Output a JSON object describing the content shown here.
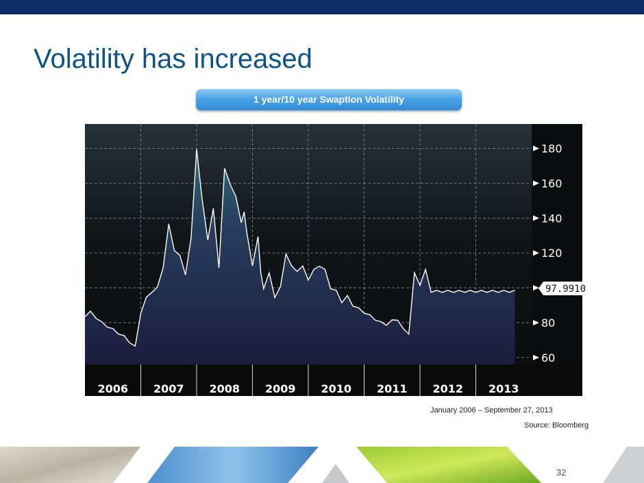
{
  "slide": {
    "title": "Volatility has increased",
    "pill_label": "1 year/10 year Swaption Volatility",
    "date_range": "January 2006 – September 27, 2013",
    "source": "Source: Bloomberg",
    "page_number": "32"
  },
  "colors": {
    "topbar": "#0b2d63",
    "title": "#0c5387",
    "pill": "#3a93dc",
    "chart_bg": "#101316",
    "line": "#ffffff",
    "area": "#222a4a"
  },
  "chart_data": {
    "type": "area",
    "title": "",
    "xlabel": "",
    "ylabel": "",
    "ylim": [
      56,
      194
    ],
    "xlim": [
      2006.0,
      2014.0
    ],
    "yticks": [
      60,
      80,
      100,
      120,
      140,
      160,
      180
    ],
    "xtick_labels": [
      "2006",
      "2007",
      "2008",
      "2009",
      "2010",
      "2011",
      "2012",
      "2013"
    ],
    "last_value_label": "97.9910",
    "grid": true,
    "series": [
      {
        "x": [
          2006.0,
          2006.1,
          2006.2,
          2006.3,
          2006.4,
          2006.5,
          2006.6,
          2006.7,
          2006.8,
          2006.9,
          2007.0,
          2007.1,
          2007.2,
          2007.3,
          2007.4,
          2007.5,
          2007.6,
          2007.7,
          2007.8,
          2007.9,
          2008.0,
          2008.1,
          2008.2,
          2008.3,
          2008.4,
          2008.5,
          2008.6,
          2008.7,
          2008.8,
          2008.85,
          2008.9,
          2009.0,
          2009.1,
          2009.15,
          2009.2,
          2009.3,
          2009.4,
          2009.5,
          2009.6,
          2009.7,
          2009.8,
          2009.9,
          2010.0,
          2010.1,
          2010.2,
          2010.3,
          2010.4,
          2010.5,
          2010.6,
          2010.7,
          2010.8,
          2010.9,
          2011.0,
          2011.1,
          2011.2,
          2011.3,
          2011.4,
          2011.5,
          2011.6,
          2011.7,
          2011.8,
          2011.9,
          2012.0,
          2012.1,
          2012.2,
          2012.3,
          2012.4,
          2012.5,
          2012.6,
          2012.7,
          2012.8,
          2012.9,
          2013.0,
          2013.1,
          2013.2,
          2013.3,
          2013.4,
          2013.5,
          2013.6,
          2013.7
        ],
        "y": [
          84,
          86,
          83,
          80,
          78,
          76,
          74,
          72,
          69,
          66,
          86,
          94,
          98,
          100,
          112,
          136,
          122,
          118,
          108,
          128,
          180,
          150,
          128,
          145,
          112,
          168,
          160,
          152,
          138,
          143,
          132,
          112,
          130,
          108,
          100,
          108,
          95,
          100,
          120,
          112,
          110,
          112,
          105,
          110,
          113,
          110,
          100,
          98,
          92,
          95,
          90,
          88,
          86,
          84,
          82,
          80,
          79,
          81,
          82,
          76,
          74,
          108,
          102,
          110,
          98,
          97.99,
          97.99,
          97.99,
          97.99,
          97.99,
          97.99,
          97.99,
          97.99,
          97.99,
          97.99,
          97.99,
          97.99,
          97.99,
          97.99,
          97.99
        ]
      }
    ]
  }
}
